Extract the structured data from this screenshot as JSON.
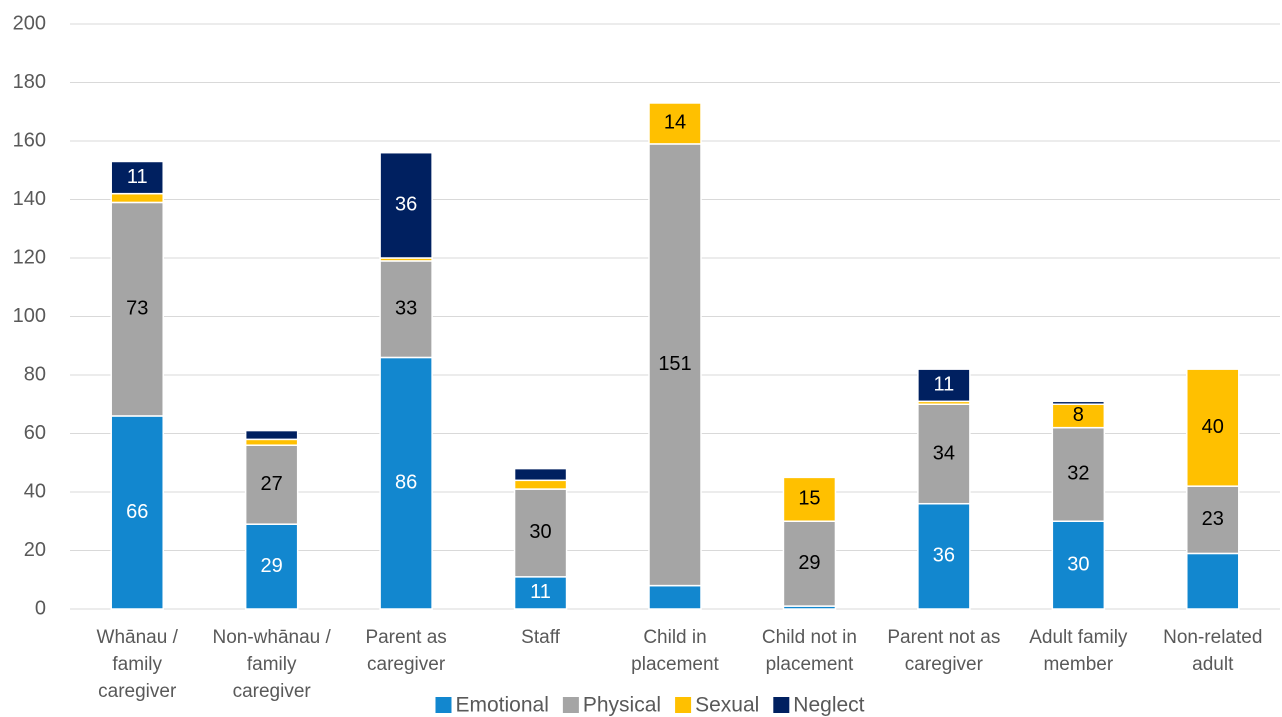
{
  "chart_data": {
    "type": "stacked_bar",
    "categories": [
      "Whānau / family caregiver",
      "Non-whānau / family caregiver",
      "Parent as caregiver",
      "Staff",
      "Child in placement",
      "Child not in placement",
      "Parent not as caregiver",
      "Adult family member",
      "Non-related adult"
    ],
    "series": [
      {
        "name": "Emotional",
        "color": "#1287cf",
        "values": [
          66,
          29,
          86,
          11,
          8,
          1,
          36,
          30,
          19
        ],
        "value_labels": [
          "66",
          "29",
          "86",
          "11",
          null,
          null,
          "36",
          "30",
          null
        ]
      },
      {
        "name": "Physical",
        "color": "#a5a5a5",
        "values": [
          73,
          27,
          33,
          30,
          151,
          29,
          34,
          32,
          23
        ],
        "value_labels": [
          "73",
          "27",
          "33",
          "30",
          "151",
          "29",
          "34",
          "32",
          "23"
        ]
      },
      {
        "name": "Sexual",
        "color": "#ffc000",
        "values": [
          3,
          2,
          1,
          3,
          14,
          15,
          1,
          8,
          40
        ],
        "value_labels": [
          null,
          null,
          null,
          null,
          "14",
          "15",
          null,
          "8",
          "40"
        ]
      },
      {
        "name": "Neglect",
        "color": "#002060",
        "values": [
          11,
          3,
          36,
          4,
          0,
          0,
          11,
          1,
          0
        ],
        "value_labels": [
          "11",
          null,
          "36",
          null,
          null,
          null,
          "11",
          null,
          null
        ]
      }
    ],
    "ylim": [
      0,
      200
    ],
    "yticks": [
      0,
      20,
      40,
      60,
      80,
      100,
      120,
      140,
      160,
      180,
      200
    ],
    "grid": true,
    "legend": "bottom"
  }
}
